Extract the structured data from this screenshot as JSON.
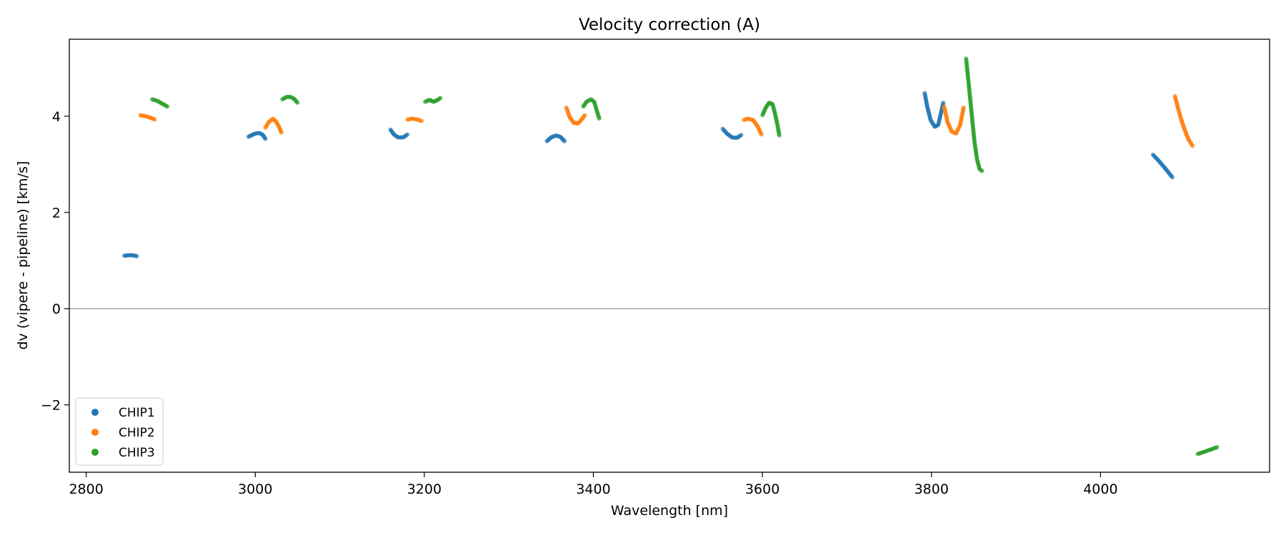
{
  "chart_data": {
    "type": "scatter",
    "title": "Velocity correction (A)",
    "xlabel": "Wavelength [nm]",
    "ylabel": "dv (vipere - pipeline) [km/s]",
    "xlim": [
      2780,
      4200
    ],
    "ylim": [
      -3.4,
      5.6
    ],
    "xticks": [
      2800,
      3000,
      3200,
      3400,
      3600,
      3800,
      4000
    ],
    "xtick_labels": [
      "2800",
      "3000",
      "3200",
      "3400",
      "3600",
      "3800",
      "4000"
    ],
    "yticks": [
      -2,
      0,
      2,
      4
    ],
    "ytick_labels": [
      "−2",
      "0",
      "2",
      "4"
    ],
    "hline": 0,
    "legend_position": "lower-left",
    "series": [
      {
        "name": "CHIP1",
        "color": "#1f77b4",
        "segments": [
          [
            [
              2845,
              1.1
            ],
            [
              2850,
              1.11
            ],
            [
              2855,
              1.11
            ],
            [
              2860,
              1.09
            ]
          ],
          [
            [
              2992,
              3.57
            ],
            [
              2995,
              3.6
            ],
            [
              3000,
              3.64
            ],
            [
              3005,
              3.65
            ],
            [
              3009,
              3.61
            ],
            [
              3012,
              3.53
            ]
          ],
          [
            [
              3160,
              3.72
            ],
            [
              3164,
              3.62
            ],
            [
              3169,
              3.56
            ],
            [
              3175,
              3.56
            ],
            [
              3180,
              3.62
            ]
          ],
          [
            [
              3345,
              3.48
            ],
            [
              3350,
              3.56
            ],
            [
              3356,
              3.6
            ],
            [
              3361,
              3.57
            ],
            [
              3366,
              3.48
            ]
          ],
          [
            [
              3553,
              3.74
            ],
            [
              3558,
              3.64
            ],
            [
              3564,
              3.56
            ],
            [
              3570,
              3.55
            ],
            [
              3575,
              3.61
            ]
          ],
          [
            [
              3792,
              4.48
            ],
            [
              3795,
              4.2
            ],
            [
              3799,
              3.92
            ],
            [
              3804,
              3.78
            ],
            [
              3808,
              3.82
            ],
            [
              3811,
              4.05
            ],
            [
              3814,
              4.28
            ]
          ],
          [
            [
              4062,
              3.2
            ],
            [
              4068,
              3.09
            ],
            [
              4074,
              2.97
            ],
            [
              4080,
              2.84
            ],
            [
              4085,
              2.73
            ]
          ]
        ]
      },
      {
        "name": "CHIP2",
        "color": "#ff7f0e",
        "segments": [
          [
            [
              2864,
              4.02
            ],
            [
              2870,
              4.0
            ],
            [
              2876,
              3.97
            ],
            [
              2881,
              3.93
            ]
          ],
          [
            [
              3012,
              3.76
            ],
            [
              3016,
              3.88
            ],
            [
              3021,
              3.95
            ],
            [
              3025,
              3.88
            ],
            [
              3028,
              3.78
            ],
            [
              3031,
              3.66
            ]
          ],
          [
            [
              3180,
              3.93
            ],
            [
              3186,
              3.95
            ],
            [
              3192,
              3.93
            ],
            [
              3197,
              3.9
            ]
          ],
          [
            [
              3368,
              4.18
            ],
            [
              3372,
              3.98
            ],
            [
              3377,
              3.86
            ],
            [
              3382,
              3.85
            ],
            [
              3387,
              3.95
            ],
            [
              3390,
              4.02
            ]
          ],
          [
            [
              3578,
              3.92
            ],
            [
              3583,
              3.95
            ],
            [
              3589,
              3.92
            ],
            [
              3594,
              3.8
            ],
            [
              3599,
              3.62
            ]
          ],
          [
            [
              3815,
              4.2
            ],
            [
              3819,
              3.88
            ],
            [
              3824,
              3.68
            ],
            [
              3829,
              3.64
            ],
            [
              3834,
              3.82
            ],
            [
              3838,
              4.18
            ]
          ],
          [
            [
              4088,
              4.42
            ],
            [
              4092,
              4.15
            ],
            [
              4096,
              3.9
            ],
            [
              4100,
              3.7
            ],
            [
              4104,
              3.52
            ],
            [
              4109,
              3.38
            ]
          ]
        ]
      },
      {
        "name": "CHIP3",
        "color": "#2ca02c",
        "segments": [
          [
            [
              2878,
              4.35
            ],
            [
              2884,
              4.32
            ],
            [
              2890,
              4.26
            ],
            [
              2896,
              4.2
            ]
          ],
          [
            [
              3032,
              4.35
            ],
            [
              3037,
              4.4
            ],
            [
              3042,
              4.4
            ],
            [
              3046,
              4.36
            ],
            [
              3050,
              4.28
            ]
          ],
          [
            [
              3201,
              4.3
            ],
            [
              3206,
              4.34
            ],
            [
              3211,
              4.3
            ],
            [
              3216,
              4.34
            ],
            [
              3219,
              4.38
            ]
          ],
          [
            [
              3388,
              4.2
            ],
            [
              3392,
              4.3
            ],
            [
              3397,
              4.35
            ],
            [
              3401,
              4.3
            ],
            [
              3404,
              4.12
            ],
            [
              3407,
              3.95
            ]
          ],
          [
            [
              3600,
              4.02
            ],
            [
              3604,
              4.18
            ],
            [
              3608,
              4.28
            ],
            [
              3612,
              4.25
            ],
            [
              3615,
              4.05
            ],
            [
              3618,
              3.8
            ],
            [
              3620,
              3.6
            ]
          ],
          [
            [
              3841,
              5.2
            ],
            [
              3843,
              4.85
            ],
            [
              3845,
              4.5
            ],
            [
              3847,
              4.15
            ],
            [
              3849,
              3.8
            ],
            [
              3851,
              3.45
            ],
            [
              3854,
              3.1
            ],
            [
              3857,
              2.9
            ],
            [
              3860,
              2.86
            ]
          ],
          [
            [
              4115,
              -3.02
            ],
            [
              4122,
              -2.98
            ],
            [
              4130,
              -2.93
            ],
            [
              4138,
              -2.88
            ]
          ]
        ]
      }
    ]
  }
}
